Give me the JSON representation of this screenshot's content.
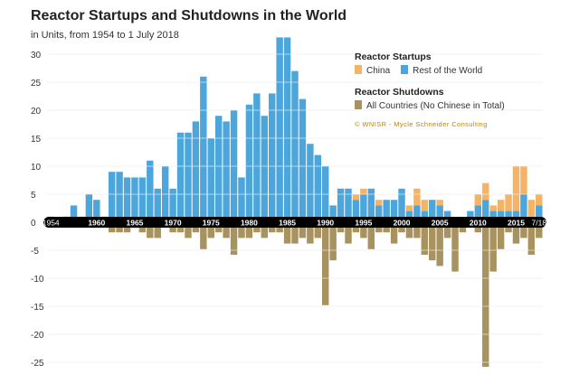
{
  "colors": {
    "china": "#f5b365",
    "rest": "#4da6db",
    "shutdown": "#a89260",
    "axis_band": "#000000"
  },
  "legend": {
    "startups_heading": "Reactor Startups",
    "china_label": "China",
    "rest_label": "Rest of the World",
    "shutdowns_heading": "Reactor Shutdowns",
    "shutdown_label": "All Countries (No Chinese in Total)",
    "credit": "© WNISR - Mycle Schneider Consulting"
  },
  "chart_data": {
    "type": "bar",
    "title": "Reactor Startups and Shutdowns in the World",
    "subtitle": "in Units, from 1954 to 1 July 2018",
    "ylim": [
      -25,
      31
    ],
    "y_ticks": [
      30,
      25,
      20,
      15,
      10,
      5,
      0,
      -5,
      -10,
      -15,
      -20,
      -25
    ],
    "y_tick_labels": [
      "30",
      "25",
      "20",
      "15",
      "10",
      "5",
      "0",
      "-5",
      "-10",
      "-15",
      "-20",
      "-25"
    ],
    "x_tick_labels": [
      {
        "year": 1954,
        "label": "1954"
      },
      {
        "year": 1960,
        "label": "1960"
      },
      {
        "year": 1965,
        "label": "1965"
      },
      {
        "year": 1970,
        "label": "1970"
      },
      {
        "year": 1975,
        "label": "1975"
      },
      {
        "year": 1980,
        "label": "1980"
      },
      {
        "year": 1985,
        "label": "1985"
      },
      {
        "year": 1990,
        "label": "1990"
      },
      {
        "year": 1995,
        "label": "1995"
      },
      {
        "year": 2000,
        "label": "2000"
      },
      {
        "year": 2005,
        "label": "2005"
      },
      {
        "year": 2010,
        "label": "2010"
      },
      {
        "year": 2015,
        "label": "2015"
      },
      {
        "year": 2018,
        "label": "7/18"
      }
    ],
    "years": [
      1954,
      1955,
      1956,
      1957,
      1958,
      1959,
      1960,
      1961,
      1962,
      1963,
      1964,
      1965,
      1966,
      1967,
      1968,
      1969,
      1970,
      1971,
      1972,
      1973,
      1974,
      1975,
      1976,
      1977,
      1978,
      1979,
      1980,
      1981,
      1982,
      1983,
      1984,
      1985,
      1986,
      1987,
      1988,
      1989,
      1990,
      1991,
      1992,
      1993,
      1994,
      1995,
      1996,
      1997,
      1998,
      1999,
      2000,
      2001,
      2002,
      2003,
      2004,
      2005,
      2006,
      2007,
      2008,
      2009,
      2010,
      2011,
      2012,
      2013,
      2014,
      2015,
      2016,
      2017,
      2018
    ],
    "series": [
      {
        "name": "China",
        "stack": "startups",
        "values": [
          0,
          0,
          0,
          0,
          0,
          0,
          0,
          0,
          0,
          0,
          0,
          0,
          0,
          0,
          0,
          0,
          0,
          0,
          0,
          0,
          0,
          0,
          0,
          0,
          0,
          0,
          0,
          0,
          0,
          0,
          0,
          0,
          0,
          0,
          0,
          0,
          0,
          0,
          0,
          0,
          1,
          1,
          0,
          1,
          0,
          0,
          0,
          1,
          3,
          2,
          0,
          1,
          0,
          0,
          0,
          0,
          2,
          3,
          1,
          2,
          3,
          8,
          5,
          3,
          2
        ]
      },
      {
        "name": "Rest of the World",
        "stack": "startups",
        "values": [
          1,
          0,
          1,
          3,
          1,
          5,
          4,
          1,
          9,
          9,
          8,
          8,
          8,
          11,
          6,
          10,
          6,
          16,
          16,
          18,
          26,
          15,
          19,
          18,
          20,
          8,
          21,
          23,
          19,
          23,
          33,
          33,
          27,
          22,
          14,
          12,
          10,
          3,
          6,
          6,
          4,
          5,
          6,
          3,
          4,
          4,
          6,
          2,
          3,
          2,
          4,
          3,
          2,
          0,
          0,
          2,
          3,
          4,
          2,
          2,
          2,
          2,
          5,
          1,
          3
        ]
      },
      {
        "name": "All Countries (No Chinese in Total)",
        "stack": "shutdowns",
        "values": [
          0,
          0,
          0,
          0,
          0,
          0,
          0,
          0,
          -1,
          -1,
          -1,
          0,
          -1,
          -2,
          -2,
          0,
          -1,
          -1,
          -2,
          -1,
          -4,
          -2,
          -1,
          -2,
          -5,
          -2,
          -2,
          -1,
          -2,
          -1,
          -1,
          -3,
          -3,
          -2,
          -3,
          -2,
          -14,
          -6,
          -1,
          -3,
          -1,
          -2,
          -4,
          -1,
          -1,
          -3,
          -1,
          -2,
          -2,
          -5,
          -6,
          -7,
          -2,
          -8,
          -1,
          0,
          -1,
          -25,
          -8,
          -4,
          -1,
          -3,
          -2,
          -5,
          -2
        ]
      }
    ]
  }
}
